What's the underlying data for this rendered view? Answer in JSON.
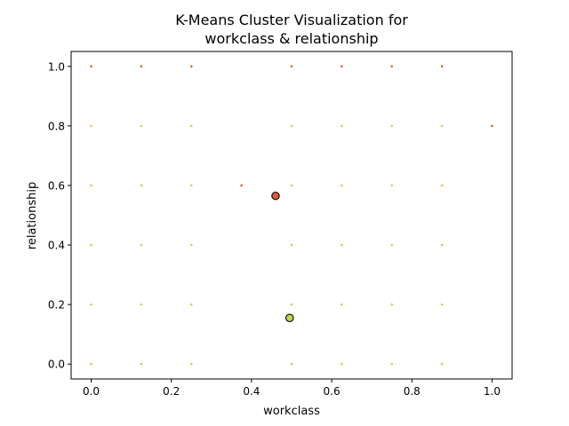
{
  "chart_data": {
    "type": "scatter",
    "title_lines": [
      "K-Means Cluster Visualization for",
      "workclass & relationship"
    ],
    "xlabel": "workclass",
    "ylabel": "relationship",
    "xlim": [
      -0.05,
      1.05
    ],
    "ylim": [
      -0.05,
      1.05
    ],
    "xticks": [
      "0.0",
      "0.2",
      "0.4",
      "0.6",
      "0.8",
      "1.0"
    ],
    "yticks": [
      "0.0",
      "0.2",
      "0.4",
      "0.6",
      "0.8",
      "1.0"
    ],
    "grid": false,
    "series": [
      {
        "color": "#e05a3a",
        "points": [
          [
            0.0,
            1.0
          ],
          [
            0.125,
            1.0
          ],
          [
            0.25,
            1.0
          ],
          [
            0.5,
            1.0
          ],
          [
            0.625,
            1.0
          ],
          [
            0.75,
            1.0
          ],
          [
            0.875,
            1.0
          ],
          [
            1.0,
            0.8
          ],
          [
            0.375,
            0.6
          ]
        ]
      },
      {
        "color": "#c2d64a",
        "points": [
          [
            0.0,
            0.8
          ],
          [
            0.125,
            0.8
          ],
          [
            0.25,
            0.8
          ],
          [
            0.5,
            0.8
          ],
          [
            0.625,
            0.8
          ],
          [
            0.75,
            0.8
          ],
          [
            0.875,
            0.8
          ],
          [
            0.0,
            0.6
          ],
          [
            0.125,
            0.6
          ],
          [
            0.25,
            0.6
          ],
          [
            0.5,
            0.6
          ],
          [
            0.625,
            0.6
          ],
          [
            0.75,
            0.6
          ],
          [
            0.875,
            0.6
          ],
          [
            0.0,
            0.4
          ],
          [
            0.125,
            0.4
          ],
          [
            0.25,
            0.4
          ],
          [
            0.5,
            0.4
          ],
          [
            0.625,
            0.4
          ],
          [
            0.75,
            0.4
          ],
          [
            0.875,
            0.4
          ],
          [
            0.0,
            0.2
          ],
          [
            0.125,
            0.2
          ],
          [
            0.25,
            0.2
          ],
          [
            0.5,
            0.2
          ],
          [
            0.625,
            0.2
          ],
          [
            0.75,
            0.2
          ],
          [
            0.875,
            0.2
          ],
          [
            0.0,
            0.0
          ],
          [
            0.125,
            0.0
          ],
          [
            0.25,
            0.0
          ],
          [
            0.5,
            0.0
          ],
          [
            0.625,
            0.0
          ],
          [
            0.75,
            0.0
          ],
          [
            0.875,
            0.0
          ]
        ]
      }
    ],
    "centroids": [
      {
        "x": 0.46,
        "y": 0.565,
        "color": "#e05a3a"
      },
      {
        "x": 0.495,
        "y": 0.155,
        "color": "#c2d64a"
      }
    ]
  }
}
